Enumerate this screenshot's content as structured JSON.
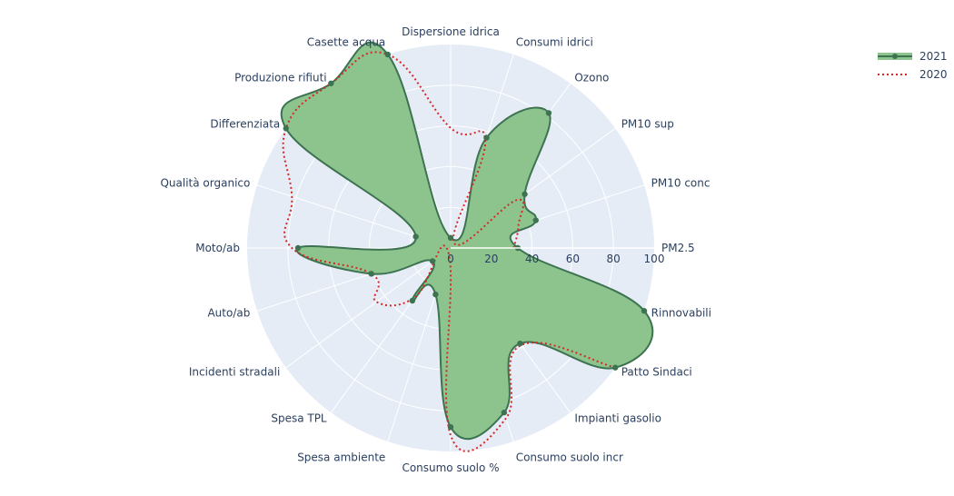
{
  "chart_data": {
    "type": "radar",
    "title": "",
    "categories": [
      "PM2.5",
      "PM10 conc",
      "PM10 sup",
      "Ozono",
      "Consumi idrici",
      "Dispersione idrica",
      "Casette acqua",
      "Produzione rifiuti",
      "Differenziata",
      "Qualità organico",
      "Moto/ab",
      "Auto/ab",
      "Incidenti stradali",
      "Spesa TPL",
      "Spesa ambiente",
      "Consumo suolo %",
      "Consumo suolo incr",
      "Impianti gasolio",
      "Patto Sindaci",
      "Rinnovabili"
    ],
    "series": [
      {
        "name": "2021",
        "style": "filled line+markers",
        "line_color": "#3d7350",
        "fill_color": "#8dc48d",
        "values": [
          33,
          44,
          45,
          82,
          57,
          5,
          100,
          100,
          100,
          18,
          75,
          41,
          11,
          32,
          24,
          88,
          85,
          58,
          100,
          100
        ]
      },
      {
        "name": "2020",
        "style": "dotted line",
        "line_color": "#d62728",
        "values": [
          31,
          35,
          40,
          3,
          55,
          59,
          100,
          100,
          100,
          82,
          78,
          41,
          45,
          30,
          3,
          92,
          88,
          59,
          100,
          null
        ]
      }
    ],
    "radial_axis": {
      "range": [
        0,
        100
      ],
      "ticks": [
        0,
        20,
        40,
        60,
        80,
        100
      ],
      "angle_deg": 0
    },
    "angular_axis": {
      "direction": "counterclockwise",
      "rotation_deg": 0
    },
    "legend_position": "top-right"
  },
  "legend": {
    "items": [
      {
        "label": "2021"
      },
      {
        "label": "2020"
      }
    ]
  }
}
